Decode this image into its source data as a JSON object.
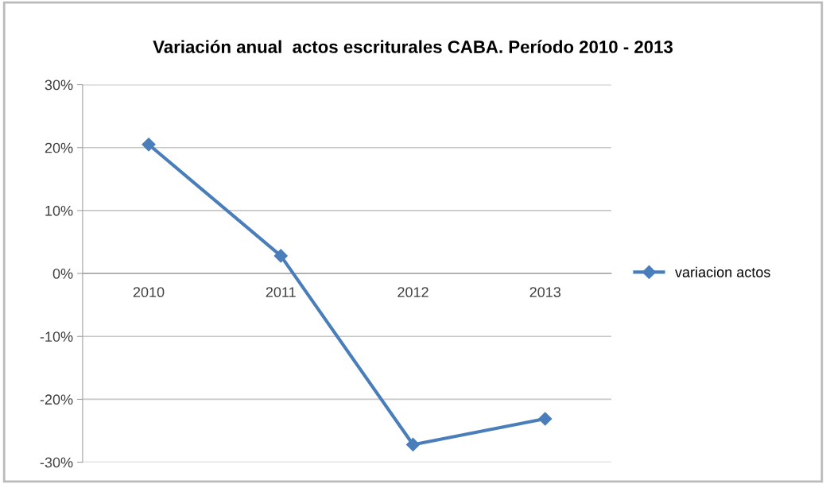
{
  "chart_data": {
    "type": "line",
    "title": "Variación anual  actos escriturales CABA. Período 2010 - 2013",
    "categories": [
      "2010",
      "2011",
      "2012",
      "2013"
    ],
    "series": [
      {
        "name": "variacion actos",
        "color": "#4a7ebb",
        "values": [
          20.5,
          2.8,
          -27.2,
          -23.1
        ]
      }
    ],
    "ylim": [
      -30,
      30
    ],
    "yticks": [
      {
        "value": -30,
        "label": "-30%"
      },
      {
        "value": -20,
        "label": "-20%"
      },
      {
        "value": -10,
        "label": "-10%"
      },
      {
        "value": 0,
        "label": "0%"
      },
      {
        "value": 10,
        "label": "10%"
      },
      {
        "value": 20,
        "label": "20%"
      },
      {
        "value": 30,
        "label": "30%"
      }
    ],
    "grid": "y",
    "legend": "right",
    "marker": "diamond",
    "line_style": "solid"
  }
}
